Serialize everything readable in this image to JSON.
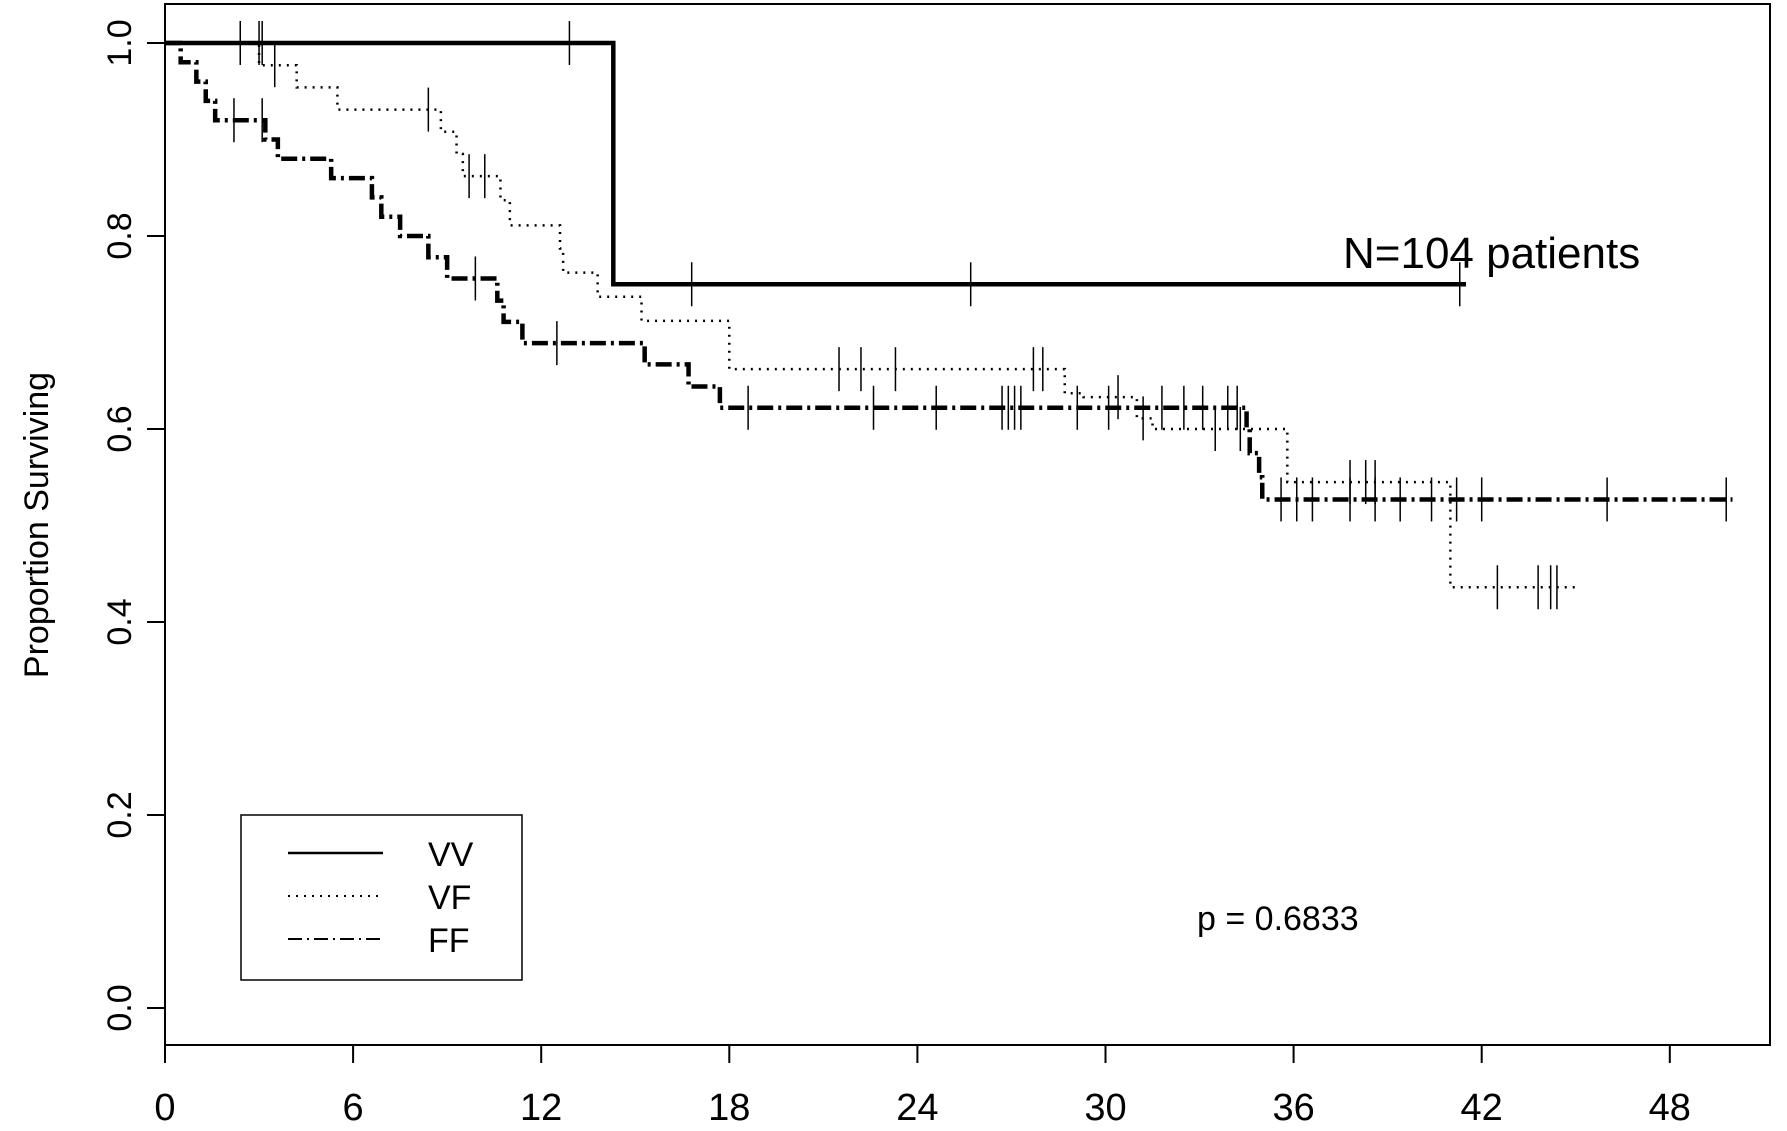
{
  "chart_data": {
    "type": "line",
    "title": "",
    "xlabel": "",
    "ylabel": "Proportion Surviving",
    "xlim": [
      0,
      51
    ],
    "ylim": [
      -0.04,
      1.04
    ],
    "x_ticks": [
      0,
      6,
      12,
      18,
      24,
      30,
      36,
      42,
      48
    ],
    "y_ticks": [
      0.0,
      0.2,
      0.4,
      0.6,
      0.8,
      1.0
    ],
    "x_tick_labels": [
      "0",
      "6",
      "12",
      "18",
      "24",
      "30",
      "36",
      "42",
      "48"
    ],
    "y_tick_labels": [
      "0.0",
      "0.2",
      "0.4",
      "0.6",
      "0.8",
      "1.0"
    ],
    "grid": false,
    "legend": {
      "position": "bottom-left",
      "entries": [
        "VV",
        "VF",
        "FF"
      ]
    },
    "annotations": {
      "n_label": "N=104 patients",
      "p_label": "p =  0.6833"
    },
    "series": [
      {
        "name": "VV",
        "style": "solid",
        "steps": [
          [
            0,
            1.0
          ],
          [
            14.3,
            0.75
          ]
        ],
        "end_x": 41.5,
        "censor_x": [
          2.4,
          3.0,
          3.1,
          12.9,
          16.8,
          25.7,
          41.3
        ]
      },
      {
        "name": "VF",
        "style": "dotted",
        "steps": [
          [
            0,
            1.0
          ],
          [
            3.0,
            0.977
          ],
          [
            4.2,
            0.954
          ],
          [
            5.5,
            0.931
          ],
          [
            8.8,
            0.908
          ],
          [
            9.3,
            0.885
          ],
          [
            9.5,
            0.862
          ],
          [
            10.7,
            0.837
          ],
          [
            11.0,
            0.811
          ],
          [
            12.6,
            0.787
          ],
          [
            12.7,
            0.762
          ],
          [
            13.8,
            0.737
          ],
          [
            15.2,
            0.712
          ],
          [
            18.0,
            0.662
          ],
          [
            28.7,
            0.637
          ],
          [
            29.3,
            0.633
          ],
          [
            31.0,
            0.611
          ],
          [
            31.5,
            0.6
          ],
          [
            35.8,
            0.545
          ],
          [
            41.0,
            0.436
          ]
        ],
        "end_x": 45.0,
        "censor_x": [
          3.5,
          8.4,
          9.7,
          10.2,
          21.5,
          22.2,
          23.3,
          27.7,
          28.0,
          30.4,
          31.2,
          33.5,
          34.3,
          37.8,
          38.3,
          38.6,
          42.5,
          43.8,
          44.2,
          44.4
        ]
      },
      {
        "name": "FF",
        "style": "dotdash",
        "steps": [
          [
            0,
            1.0
          ],
          [
            0.5,
            0.98
          ],
          [
            1.0,
            0.96
          ],
          [
            1.3,
            0.94
          ],
          [
            1.6,
            0.92
          ],
          [
            3.2,
            0.9
          ],
          [
            3.6,
            0.88
          ],
          [
            5.3,
            0.86
          ],
          [
            6.6,
            0.84
          ],
          [
            6.9,
            0.82
          ],
          [
            7.5,
            0.8
          ],
          [
            8.4,
            0.778
          ],
          [
            9.0,
            0.756
          ],
          [
            10.6,
            0.733
          ],
          [
            10.8,
            0.711
          ],
          [
            11.4,
            0.689
          ],
          [
            15.3,
            0.667
          ],
          [
            16.7,
            0.644
          ],
          [
            17.7,
            0.622
          ],
          [
            34.5,
            0.6
          ],
          [
            34.6,
            0.575
          ],
          [
            34.9,
            0.55
          ],
          [
            35.0,
            0.527
          ]
        ],
        "end_x": 50.0,
        "censor_x": [
          2.2,
          3.1,
          9.9,
          12.5,
          18.6,
          22.6,
          24.6,
          26.7,
          26.9,
          27.1,
          27.3,
          29.1,
          30.1,
          31.8,
          32.5,
          33.1,
          33.9,
          34.2,
          35.6,
          36.1,
          36.6,
          37.8,
          38.6,
          39.4,
          40.4,
          41.2,
          42.0,
          46.0,
          49.8
        ]
      }
    ]
  }
}
